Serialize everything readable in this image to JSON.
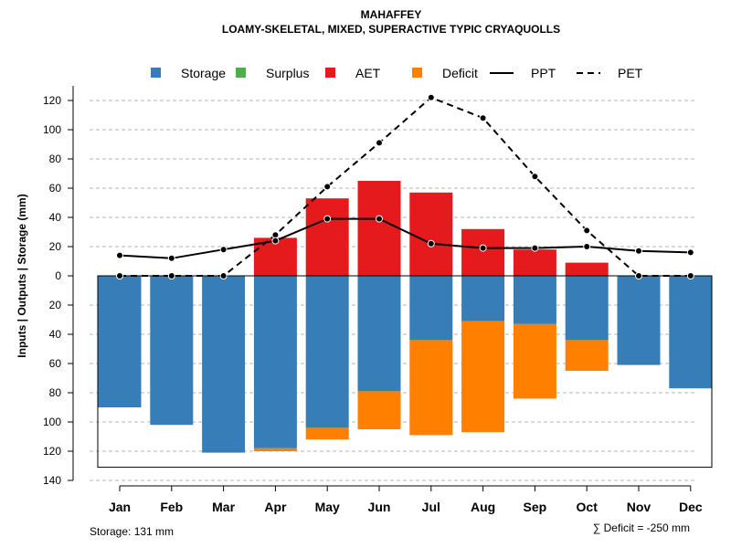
{
  "chart_data": {
    "type": "bar",
    "title": "MAHAFFEY",
    "subtitle": "LOAMY-SKELETAL, MIXED, SUPERACTIVE TYPIC CRYAQUOLLS",
    "ylabel": "Inputs | Outputs | Storage    (mm)",
    "categories": [
      "Jan",
      "Feb",
      "Mar",
      "Apr",
      "May",
      "Jun",
      "Jul",
      "Aug",
      "Sep",
      "Oct",
      "Nov",
      "Dec"
    ],
    "y_ticks": [
      {
        "value": 120,
        "label": "120"
      },
      {
        "value": 100,
        "label": "100"
      },
      {
        "value": 80,
        "label": "80"
      },
      {
        "value": 60,
        "label": "60"
      },
      {
        "value": 40,
        "label": "40"
      },
      {
        "value": 20,
        "label": "20"
      },
      {
        "value": 0,
        "label": "0"
      },
      {
        "value": -20,
        "label": "20"
      },
      {
        "value": -40,
        "label": "40"
      },
      {
        "value": -60,
        "label": "60"
      },
      {
        "value": -80,
        "label": "80"
      },
      {
        "value": -100,
        "label": "100"
      },
      {
        "value": -120,
        "label": "120"
      },
      {
        "value": -140,
        "label": "140"
      }
    ],
    "ylim": [
      -140,
      130
    ],
    "grid": true,
    "legend_position": "top",
    "legend": [
      {
        "label": "Storage",
        "kind": "square",
        "color": "#377eb8"
      },
      {
        "label": "Surplus",
        "kind": "square",
        "color": "#4daf4a"
      },
      {
        "label": "AET",
        "kind": "square",
        "color": "#e41a1c"
      },
      {
        "label": "Deficit",
        "kind": "square",
        "color": "#ff7f00"
      },
      {
        "label": "PPT",
        "kind": "solid-line",
        "color": "#000000"
      },
      {
        "label": "PET",
        "kind": "dashed-line",
        "color": "#000000"
      }
    ],
    "series": [
      {
        "name": "AET",
        "color": "#e41a1c",
        "values": [
          0,
          0,
          0,
          26,
          53,
          65,
          57,
          32,
          18,
          9,
          0,
          0
        ]
      },
      {
        "name": "Surplus",
        "color": "#4daf4a",
        "values": [
          0,
          0,
          0,
          0,
          0,
          0,
          0,
          0,
          0,
          0,
          0,
          0
        ]
      },
      {
        "name": "Storage",
        "color": "#377eb8",
        "values": [
          90,
          102,
          121,
          118,
          104,
          79,
          44,
          31,
          33,
          44,
          61,
          77
        ]
      },
      {
        "name": "Deficit",
        "color": "#ff7f00",
        "values": [
          0,
          0,
          0,
          2,
          8,
          26,
          65,
          76,
          51,
          21,
          0,
          0
        ]
      },
      {
        "name": "PPT",
        "color": "#000000",
        "values": [
          14,
          12,
          18,
          24,
          39,
          39,
          22,
          19,
          19,
          20,
          17,
          16
        ]
      },
      {
        "name": "PET",
        "color": "#000000",
        "values": [
          0,
          0,
          0,
          28,
          61,
          91,
          122,
          108,
          68,
          31,
          0,
          0
        ]
      }
    ],
    "storage_capacity": 131,
    "storage_label": "Storage: 131 mm",
    "deficit_total": -250,
    "deficit_label": "∑ Deficit = -250 mm"
  }
}
